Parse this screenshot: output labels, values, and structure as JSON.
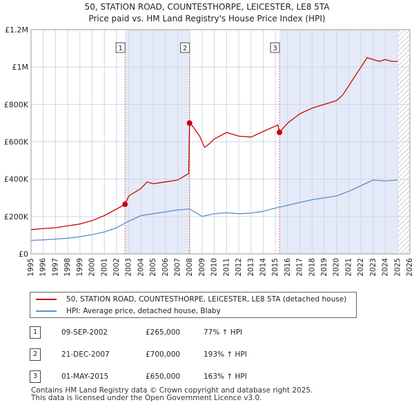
{
  "title_line1": "50, STATION ROAD, COUNTESTHORPE, LEICESTER, LE8 5TA",
  "title_line2": "Price paid vs. HM Land Registry's House Price Index (HPI)",
  "colors": {
    "property": "#cc0000",
    "hpi": "#5b8fc9",
    "shade": "#e4eaf7",
    "grid": "#cfd6e4",
    "marker_line": "#e06666"
  },
  "legend": {
    "property_label": "50, STATION ROAD, COUNTESTHORPE, LEICESTER, LE8 5TA (detached house)",
    "hpi_label": "HPI: Average price, detached house, Blaby"
  },
  "transactions": [
    {
      "num": "1",
      "date": "09-SEP-2002",
      "price": "£265,000",
      "hpi": "77% ↑ HPI"
    },
    {
      "num": "2",
      "date": "21-DEC-2007",
      "price": "£700,000",
      "hpi": "193% ↑ HPI"
    },
    {
      "num": "3",
      "date": "01-MAY-2015",
      "price": "£650,000",
      "hpi": "163% ↑ HPI"
    }
  ],
  "footer_line1": "Contains HM Land Registry data © Crown copyright and database right 2025.",
  "footer_line2": "This data is licensed under the Open Government Licence v3.0.",
  "chart_data": {
    "type": "line",
    "xlim": [
      1995,
      2026
    ],
    "ylim": [
      0,
      1200000
    ],
    "yticks": [
      0,
      200000,
      400000,
      600000,
      800000,
      1000000,
      1200000
    ],
    "ytick_labels": [
      "£0",
      "£200K",
      "£400K",
      "£600K",
      "£800K",
      "£1M",
      "£1.2M"
    ],
    "xticks": [
      1995,
      1996,
      1997,
      1998,
      1999,
      2000,
      2001,
      2002,
      2003,
      2004,
      2005,
      2006,
      2007,
      2008,
      2009,
      2010,
      2011,
      2012,
      2013,
      2014,
      2015,
      2016,
      2017,
      2018,
      2019,
      2020,
      2021,
      2022,
      2023,
      2024,
      2025,
      2026
    ],
    "shaded_ranges": [
      [
        2002.69,
        2007.97
      ],
      [
        2015.33,
        2025.0
      ]
    ],
    "hatched_from": 2025.0,
    "sales": [
      {
        "label": "1",
        "x": 2002.69,
        "y": 265000
      },
      {
        "label": "2",
        "x": 2007.97,
        "y": 700000
      },
      {
        "label": "3",
        "x": 2015.33,
        "y": 650000
      }
    ],
    "series": [
      {
        "name": "50, STATION ROAD, COUNTESTHORPE, LEICESTER, LE8 5TA (detached house)",
        "x": [
          1995,
          1996,
          1997,
          1998,
          1999,
          2000,
          2001,
          2002,
          2002.69,
          2003,
          2004,
          2004.5,
          2005,
          2006,
          2007,
          2007.9,
          2007.97,
          2008.2,
          2008.8,
          2009.2,
          2009.6,
          2010,
          2011,
          2012,
          2013,
          2014,
          2015.2,
          2015.33,
          2015.6,
          2016,
          2017,
          2018,
          2019,
          2020,
          2020.5,
          2021,
          2021.5,
          2022,
          2022.5,
          2023,
          2023.5,
          2024,
          2024.5,
          2025
        ],
        "y": [
          130000,
          135000,
          140000,
          150000,
          160000,
          178000,
          205000,
          240000,
          265000,
          310000,
          350000,
          385000,
          375000,
          385000,
          395000,
          430000,
          700000,
          685000,
          630000,
          570000,
          590000,
          615000,
          650000,
          630000,
          625000,
          655000,
          690000,
          650000,
          670000,
          700000,
          750000,
          780000,
          800000,
          820000,
          850000,
          900000,
          950000,
          1000000,
          1050000,
          1040000,
          1030000,
          1040000,
          1030000,
          1030000
        ]
      },
      {
        "name": "HPI: Average price, detached house, Blaby",
        "x": [
          1995,
          1996,
          1997,
          1998,
          1999,
          2000,
          2001,
          2002,
          2003,
          2004,
          2005,
          2006,
          2007,
          2008,
          2009,
          2010,
          2011,
          2012,
          2013,
          2014,
          2015,
          2016,
          2017,
          2018,
          2019,
          2020,
          2021,
          2022,
          2023,
          2024,
          2025
        ],
        "y": [
          72000,
          75000,
          79000,
          84000,
          92000,
          103000,
          117000,
          140000,
          175000,
          205000,
          215000,
          225000,
          235000,
          240000,
          200000,
          215000,
          220000,
          215000,
          218000,
          228000,
          245000,
          260000,
          275000,
          290000,
          300000,
          310000,
          335000,
          365000,
          395000,
          390000,
          395000
        ]
      }
    ]
  }
}
